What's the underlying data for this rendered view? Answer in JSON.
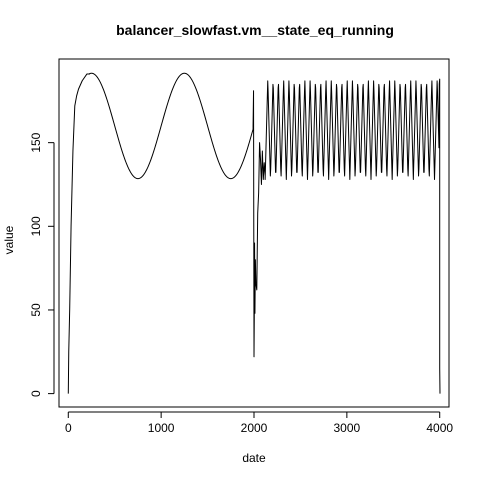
{
  "chart_data": {
    "type": "line",
    "title": "balancer_slowfast.vm__state_eq_running",
    "xlabel": "date",
    "ylabel": "value",
    "xlim": [
      -100,
      4100
    ],
    "ylim": [
      -8,
      200
    ],
    "x_ticks": [
      0,
      1000,
      2000,
      3000,
      4000
    ],
    "y_ticks": [
      0,
      50,
      100,
      150
    ],
    "grid": false,
    "series": [
      {
        "name": "value",
        "color": "#000000",
        "segments": [
          {
            "desc": "initial ramp",
            "x": [
              0,
              5,
              15,
              30,
              50,
              70,
              90,
              110,
              150,
              200,
              230
            ],
            "y": [
              0,
              25,
              50,
              100,
              145,
              172,
              178,
              182,
              187,
              191,
              191
            ]
          },
          {
            "desc": "slow sinusoid",
            "x_start": 230,
            "x_end": 1990,
            "mid": 160,
            "amplitude": 31.5,
            "period": 1000,
            "peak_x": 250
          },
          {
            "desc": "crash and recovery",
            "x": [
              1990,
              1995,
              2000,
              2003,
              2006,
              2010,
              2015,
              2020,
              2030,
              2040,
              2050,
              2060,
              2070,
              2080,
              2090,
              2100,
              2110,
              2120
            ],
            "y": [
              160,
              181,
              22,
              45,
              90,
              48,
              80,
              66,
              62,
              108,
              120,
              150,
              140,
              125,
              145,
              128,
              138,
              130
            ]
          },
          {
            "desc": "fast oscillation",
            "x_start": 2120,
            "x_end": 3995,
            "low": 128,
            "high": 188,
            "period": 57
          },
          {
            "desc": "final drop",
            "x": [
              3995,
              4000,
              4000,
              4003
            ],
            "y": [
              185,
              188,
              15,
              0
            ]
          }
        ]
      }
    ]
  }
}
